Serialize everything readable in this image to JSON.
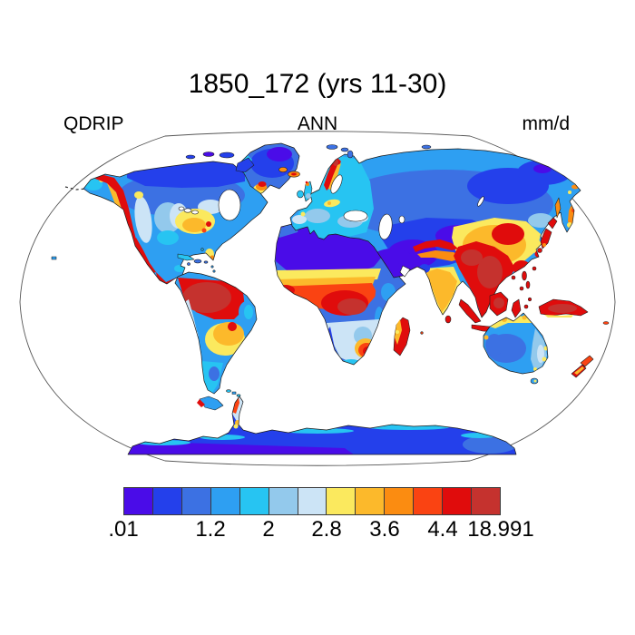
{
  "title": "1850_172 (yrs 11-30)",
  "header": {
    "variable": "QDRIP",
    "season": "ANN",
    "units": "mm/d"
  },
  "colorbar": {
    "n_boxes": 13,
    "colors": [
      "#4A0CE8",
      "#2440EB",
      "#3C71E3",
      "#2E9FF2",
      "#27C4F2",
      "#93C9EC",
      "#CCE4F6",
      "#FBE95E",
      "#FCB92B",
      "#FB8C11",
      "#FA4312",
      "#E00C0C",
      "#C5322E"
    ],
    "labels": [
      ".01",
      "1.2",
      "2",
      "2.8",
      "3.6",
      "4.4",
      "18.991"
    ],
    "label_edge_positions": [
      0,
      3,
      5,
      7,
      9,
      11,
      13
    ]
  },
  "chart_data": {
    "type": "heatmap",
    "subtype": "filled-contour global map (Robinson projection, land-only, ocean masked white)",
    "title": "1850_172 (yrs 11-30)",
    "variable": "QDRIP",
    "season": "ANN",
    "units": "mm/d",
    "value_range": [
      0.01,
      18.991
    ],
    "labeled_levels": [
      0.01,
      1.2,
      2,
      2.8,
      3.6,
      4.4,
      18.991
    ],
    "n_color_bins": 13,
    "palette": [
      "#4A0CE8",
      "#2440EB",
      "#3C71E3",
      "#2E9FF2",
      "#27C4F2",
      "#93C9EC",
      "#CCE4F6",
      "#FBE95E",
      "#FCB92B",
      "#FB8C11",
      "#FA4312",
      "#E00C0C",
      "#C5322E"
    ],
    "legend_position": "bottom",
    "regions_read_from_map": [
      {
        "region": "Amazon basin",
        "approx_value_mmd": "> 4.4 (dark red)"
      },
      {
        "region": "Congo basin / West Africa coast",
        "approx_value_mmd": "> 4.4 (dark red)"
      },
      {
        "region": "Maritime continent (Sumatra, Borneo, New Guinea)",
        "approx_value_mmd": "> 4.4 (dark red)"
      },
      {
        "region": "SE Asia, S China, Japan, Himalayan front",
        "approx_value_mmd": "4 - 18.99 (red/orange)"
      },
      {
        "region": "Sahara, Arabian Peninsula, Central Asia",
        "approx_value_mmd": "< 0.4 (violet-blue)"
      },
      {
        "region": "Antarctica interior",
        "approx_value_mmd": "< 0.8 (violet/deep blue)"
      },
      {
        "region": "Siberia, Canada, Greenland",
        "approx_value_mmd": "0.4 - 1.6 (blues)"
      },
      {
        "region": "SE United States",
        "approx_value_mmd": "2.8 - 4.4 (yellow/orange)"
      },
      {
        "region": "Pacific NW coast, S Chile, Norway coast, New Zealand, Iceland",
        "approx_value_mmd": "> 4 (coastal red stripes)"
      },
      {
        "region": "Europe",
        "approx_value_mmd": "1.6 - 2.8 (cyan/pale blue)"
      },
      {
        "region": "India interior",
        "approx_value_mmd": "2.8 - 4 (yellow/orange), west coast > 4.4"
      },
      {
        "region": "Australia interior",
        "approx_value_mmd": "0.8 - 2 (blues), north tip 3 - 4.4"
      },
      {
        "region": "Southern Africa",
        "approx_value_mmd": "1.6 - 2.8 (pale blues), SE patch > 4"
      }
    ]
  }
}
